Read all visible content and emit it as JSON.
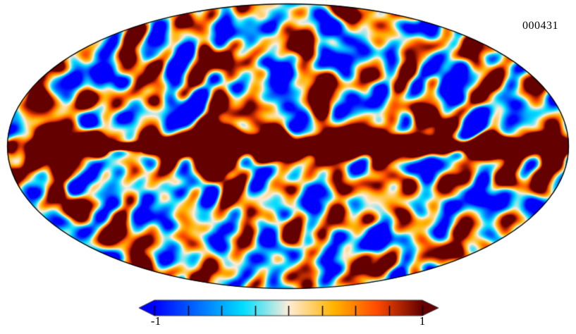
{
  "figure": {
    "background": "#ffffff",
    "outline_color": "#000000"
  },
  "chart_data": {
    "type": "heatmap",
    "projection": "mollweide",
    "title": "",
    "annotation": "000431",
    "value_range": [
      -1,
      1
    ],
    "grid": false,
    "features": {
      "galactic_plane": "saturated dark-red band along the equator spanning full width",
      "texture": "smoothed CMB-like fluctuation field, blobs 20-40 px, saturating at both colormap ends"
    },
    "colormap": {
      "name": "planck",
      "stops": [
        {
          "pos": 0.0,
          "color": "#0000ff"
        },
        {
          "pos": 0.33,
          "color": "#00ddff"
        },
        {
          "pos": 0.5,
          "color": "#ffedd9"
        },
        {
          "pos": 0.67,
          "color": "#ffb400"
        },
        {
          "pos": 0.83,
          "color": "#ff4b00"
        },
        {
          "pos": 1.0,
          "color": "#640000"
        }
      ]
    },
    "colorbar": {
      "orientation": "horizontal",
      "extend": "both",
      "outline_color": "#3a3a3a",
      "tick_color": "#000000",
      "tick_values": [
        -1,
        -0.75,
        -0.5,
        -0.25,
        0,
        0.25,
        0.5,
        0.75,
        1
      ],
      "labels": [
        {
          "value": -1,
          "text": "-1"
        },
        {
          "value": 1,
          "text": "1"
        }
      ]
    },
    "render_params": {
      "seed": 431,
      "octave_wavelengths": [
        110,
        64,
        42,
        30
      ],
      "octave_amplitudes": [
        0.45,
        0.55,
        0.42,
        0.22
      ],
      "field_std": 0.88,
      "plane_amplitude": 3.2,
      "plane_half_width": 13,
      "plane_width_variation": 11,
      "plane_center_bulge": 12
    }
  }
}
